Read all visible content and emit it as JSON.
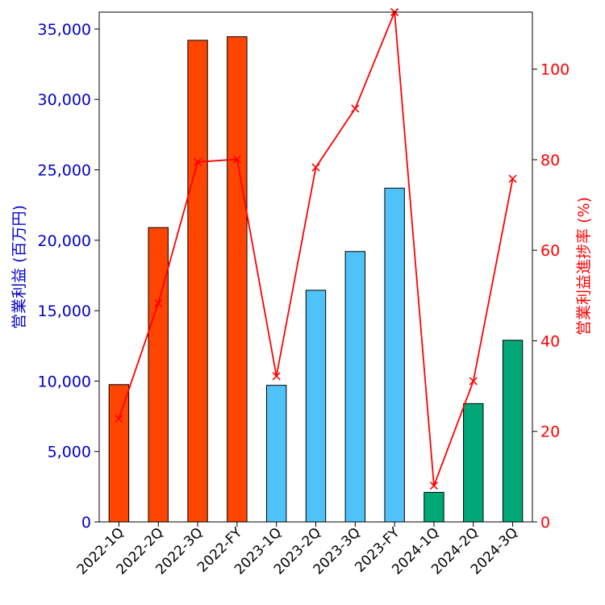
{
  "chart_data": {
    "type": "bar",
    "categories": [
      "2022-1Q",
      "2022-2Q",
      "2022-3Q",
      "2022-FY",
      "2023-1Q",
      "2023-2Q",
      "2023-3Q",
      "2023-FY",
      "2024-1Q",
      "2024-2Q",
      "2024-3Q"
    ],
    "series": [
      {
        "type": "bar",
        "axis": "left",
        "values": [
          9750,
          20900,
          34200,
          34450,
          9700,
          16450,
          19200,
          23700,
          2100,
          8400,
          12900
        ],
        "colors": [
          "#ff4500",
          "#ff4500",
          "#ff4500",
          "#ff4500",
          "#4fc3f7",
          "#4fc3f7",
          "#4fc3f7",
          "#4fc3f7",
          "#00a878",
          "#00a878",
          "#00a878"
        ]
      },
      {
        "type": "line",
        "axis": "right",
        "marker": "x",
        "color": "#ff0000",
        "values": [
          22.8,
          48.3,
          79.5,
          80.1,
          32.2,
          78.3,
          91.3,
          112.6,
          8.0,
          31.1,
          75.8
        ]
      }
    ],
    "ylabel": "営業利益 (百万円)",
    "y2label": "営業利益進捗率 (%)",
    "ylim": [
      0,
      36200
    ],
    "y2lim": [
      0,
      112.6
    ],
    "yticks": [
      0,
      5000,
      10000,
      15000,
      20000,
      25000,
      30000,
      35000
    ],
    "yticklabels": [
      "0",
      "5,000",
      "10,000",
      "15,000",
      "20,000",
      "25,000",
      "30,000",
      "35,000"
    ],
    "y2ticks": [
      0,
      20,
      40,
      60,
      80,
      100
    ],
    "y2ticklabels": [
      "0",
      "20",
      "40",
      "60",
      "80",
      "100"
    ],
    "left_axis_color": "#0000cc",
    "right_axis_color": "#ff0000",
    "grid": false
  }
}
